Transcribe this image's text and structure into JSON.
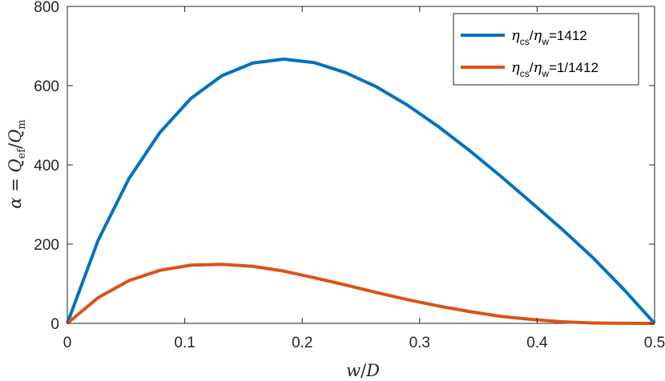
{
  "chart_data": {
    "type": "line",
    "xlabel": "w/D",
    "ylabel": "α = Q_ef/Q_m",
    "xlim": [
      0,
      0.5
    ],
    "ylim": [
      0,
      800
    ],
    "xticks": [
      0,
      0.1,
      0.2,
      0.3,
      0.4,
      0.5
    ],
    "yticks": [
      0,
      200,
      400,
      600,
      800
    ],
    "x_tick_labels": [
      "0",
      "0.1",
      "0.2",
      "0.3",
      "0.4",
      "0.5"
    ],
    "y_tick_labels": [
      "0",
      "200",
      "400",
      "600",
      "800"
    ],
    "grid": false,
    "legend_position": "top-right",
    "series": [
      {
        "name": "η cs/η w=1412",
        "color": "#0072BD",
        "x": [
          0,
          0.0263,
          0.0526,
          0.0789,
          0.1053,
          0.1316,
          0.1579,
          0.1842,
          0.2105,
          0.2368,
          0.2632,
          0.2895,
          0.3158,
          0.3421,
          0.3684,
          0.3947,
          0.4211,
          0.4474,
          0.4737,
          0.5
        ],
        "values": [
          0,
          210,
          366,
          482,
          568,
          625,
          657,
          667,
          658,
          633,
          597,
          551,
          497,
          437,
          373,
          306,
          238,
          166,
          86,
          0
        ]
      },
      {
        "name": "η cs/η w=1/1412",
        "color": "#D95319",
        "x": [
          0,
          0.0263,
          0.0526,
          0.0789,
          0.1053,
          0.1316,
          0.1579,
          0.1842,
          0.2105,
          0.2368,
          0.2632,
          0.2895,
          0.3158,
          0.3421,
          0.3684,
          0.3947,
          0.4211,
          0.4474,
          0.4737,
          0.5
        ],
        "values": [
          0,
          65,
          108,
          134,
          147,
          149,
          144,
          132,
          115,
          97,
          78,
          60,
          44,
          30,
          18,
          10,
          4,
          1,
          0.3,
          0
        ]
      }
    ]
  },
  "legend": {
    "entries": [
      {
        "sym1": "η",
        "sub1": "cs",
        "slash": "/",
        "sym2": "η",
        "sub2": "w",
        "value": "=1412"
      },
      {
        "sym1": "η",
        "sub1": "cs",
        "slash": "/",
        "sym2": "η",
        "sub2": "w",
        "value": "=1/1412"
      }
    ]
  }
}
